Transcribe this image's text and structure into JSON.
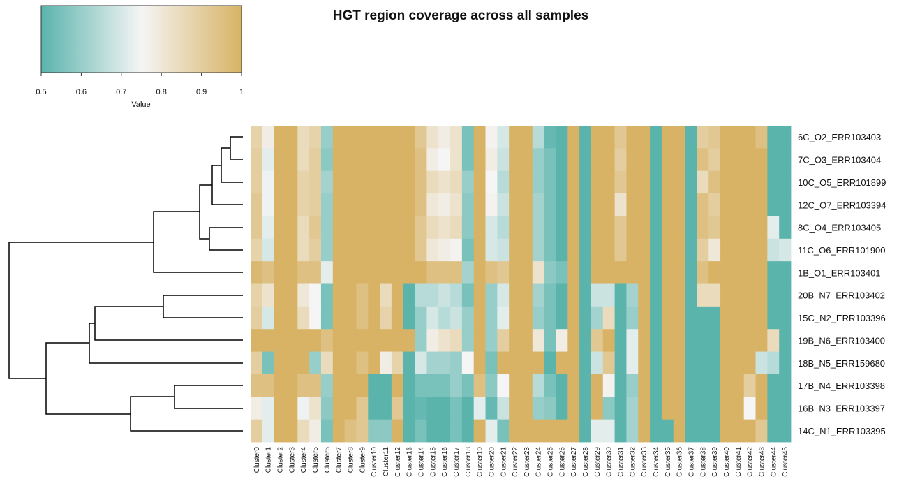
{
  "chart_data": {
    "type": "heatmap",
    "title": "HGT region coverage across all samples",
    "rows": [
      "6C_O2_ERR103403",
      "7C_O3_ERR103404",
      "10C_O5_ERR101899",
      "12C_O7_ERR103394",
      "8C_O4_ERR103405",
      "11C_O6_ERR101900",
      "1B_O1_ERR103401",
      "20B_N7_ERR103402",
      "15C_N2_ERR103396",
      "19B_N6_ERR103400",
      "18B_N5_ERR159680",
      "17B_N4_ERR103398",
      "16B_N3_ERR103397",
      "14C_N1_ERR103395"
    ],
    "columns": [
      "Cluster0",
      "Cluster1",
      "Cluster2",
      "Cluster3",
      "Cluster4",
      "Cluster5",
      "Cluster6",
      "Cluster7",
      "Cluster8",
      "Cluster9",
      "Cluster10",
      "Cluster11",
      "Cluster12",
      "Cluster13",
      "Cluster14",
      "Cluster15",
      "Cluster16",
      "Cluster17",
      "Cluster18",
      "Cluster19",
      "Cluster20",
      "Cluster21",
      "Cluster22",
      "Cluster23",
      "Cluster24",
      "Cluster25",
      "Cluster26",
      "Cluster27",
      "Cluster28",
      "Cluster29",
      "Cluster30",
      "Cluster31",
      "Cluster32",
      "Cluster33",
      "Cluster34",
      "Cluster35",
      "Cluster36",
      "Cluster37",
      "Cluster38",
      "Cluster39",
      "Cluster40",
      "Cluster41",
      "Cluster42",
      "Cluster43",
      "Cluster44",
      "Cluster45"
    ],
    "values": [
      [
        0.88,
        0.78,
        1,
        1,
        0.85,
        0.88,
        0.6,
        1,
        1,
        1,
        1,
        1,
        1,
        1,
        0.92,
        0.82,
        0.78,
        0.82,
        0.55,
        1,
        0.76,
        0.7,
        1,
        1,
        0.65,
        0.52,
        0.5,
        1,
        0.5,
        1,
        1,
        0.92,
        1,
        1,
        0.5,
        1,
        1,
        0.5,
        0.9,
        0.92,
        1,
        1,
        1,
        0.95,
        0.5,
        0.5
      ],
      [
        0.9,
        0.72,
        1,
        1,
        0.85,
        0.9,
        0.58,
        1,
        1,
        1,
        1,
        1,
        1,
        1,
        0.95,
        0.78,
        0.75,
        0.82,
        0.55,
        1,
        0.78,
        0.68,
        1,
        1,
        0.6,
        0.55,
        0.5,
        1,
        0.5,
        1,
        1,
        0.9,
        1,
        1,
        0.5,
        1,
        1,
        0.5,
        0.95,
        0.9,
        1,
        1,
        1,
        1,
        0.5,
        0.5
      ],
      [
        0.9,
        0.74,
        1,
        1,
        0.88,
        0.9,
        0.62,
        1,
        1,
        1,
        1,
        1,
        1,
        1,
        0.95,
        0.85,
        0.82,
        0.85,
        0.6,
        1,
        0.75,
        0.65,
        1,
        1,
        0.6,
        0.55,
        0.5,
        1,
        0.5,
        1,
        1,
        0.92,
        1,
        1,
        0.5,
        1,
        1,
        0.5,
        0.85,
        0.95,
        1,
        1,
        1,
        1,
        0.5,
        0.5
      ],
      [
        0.92,
        0.74,
        1,
        1,
        0.88,
        0.9,
        0.6,
        1,
        1,
        1,
        1,
        1,
        1,
        1,
        0.95,
        0.8,
        0.78,
        0.82,
        0.58,
        1,
        0.76,
        0.68,
        1,
        1,
        0.62,
        0.55,
        0.5,
        1,
        0.5,
        1,
        1,
        0.82,
        1,
        1,
        0.5,
        1,
        1,
        0.5,
        0.95,
        0.9,
        1,
        1,
        1,
        1,
        0.5,
        0.5
      ],
      [
        0.92,
        0.72,
        1,
        1,
        0.85,
        0.92,
        0.6,
        1,
        1,
        1,
        1,
        1,
        1,
        1,
        0.92,
        0.85,
        0.82,
        0.85,
        0.58,
        1,
        0.7,
        0.65,
        1,
        1,
        0.62,
        0.55,
        0.5,
        1,
        0.5,
        1,
        1,
        0.92,
        1,
        1,
        0.5,
        1,
        1,
        0.5,
        0.95,
        0.92,
        1,
        1,
        1,
        1,
        0.72,
        0.5
      ],
      [
        0.88,
        0.7,
        1,
        1,
        0.85,
        0.9,
        0.6,
        1,
        1,
        1,
        1,
        1,
        1,
        1,
        0.92,
        0.8,
        0.78,
        0.76,
        0.55,
        1,
        0.7,
        0.68,
        1,
        1,
        0.62,
        0.55,
        0.5,
        1,
        0.5,
        1,
        1,
        0.92,
        1,
        1,
        0.5,
        1,
        1,
        0.5,
        0.9,
        0.8,
        1,
        1,
        1,
        1,
        0.68,
        0.7
      ],
      [
        0.98,
        0.95,
        1,
        1,
        0.95,
        0.95,
        0.72,
        1,
        1,
        1,
        1,
        1,
        1,
        1,
        1,
        0.95,
        0.95,
        0.95,
        0.62,
        1,
        0.95,
        0.92,
        1,
        1,
        0.82,
        0.58,
        0.55,
        1,
        0.5,
        1,
        1,
        1,
        1,
        1,
        0.5,
        1,
        1,
        0.5,
        0.95,
        1,
        1,
        1,
        1,
        1,
        0.5,
        0.5
      ],
      [
        0.88,
        0.82,
        1,
        1,
        0.8,
        0.75,
        0.55,
        1,
        1,
        0.95,
        1,
        0.85,
        1,
        0.5,
        0.65,
        0.65,
        0.68,
        0.65,
        0.55,
        1,
        0.6,
        0.7,
        1,
        1,
        0.62,
        0.55,
        0.5,
        1,
        0.5,
        0.68,
        0.68,
        0.5,
        0.62,
        1,
        0.5,
        1,
        1,
        0.5,
        0.85,
        0.85,
        1,
        1,
        1,
        1,
        0.5,
        0.5
      ],
      [
        0.9,
        0.7,
        1,
        1,
        0.85,
        0.75,
        0.55,
        1,
        1,
        0.95,
        1,
        0.88,
        1,
        0.5,
        0.6,
        0.7,
        0.65,
        0.68,
        0.6,
        1,
        0.6,
        0.72,
        1,
        1,
        0.6,
        0.55,
        0.5,
        1,
        0.5,
        0.62,
        0.85,
        0.5,
        0.6,
        1,
        0.5,
        1,
        1,
        0.5,
        0.5,
        0.5,
        1,
        1,
        1,
        1,
        0.5,
        0.5
      ],
      [
        1,
        1,
        1,
        1,
        1,
        1,
        0.95,
        1,
        1,
        1,
        1,
        1,
        1,
        1,
        0.6,
        0.78,
        0.82,
        0.85,
        0.6,
        1,
        0.6,
        0.9,
        1,
        1,
        0.8,
        0.55,
        0.78,
        1,
        0.5,
        0.92,
        1,
        0.5,
        0.72,
        1,
        0.5,
        1,
        1,
        0.5,
        0.5,
        0.5,
        1,
        1,
        1,
        1,
        0.85,
        0.5
      ],
      [
        0.9,
        0.55,
        1,
        1,
        1,
        0.6,
        0.85,
        1,
        1,
        0.95,
        1,
        0.78,
        0.88,
        0.5,
        0.7,
        0.62,
        0.62,
        0.6,
        0.75,
        1,
        0.55,
        1,
        1,
        1,
        1,
        0.5,
        1,
        1,
        0.5,
        0.68,
        0.92,
        0.5,
        0.72,
        1,
        0.5,
        1,
        1,
        0.5,
        0.5,
        0.5,
        1,
        1,
        1,
        0.68,
        0.65,
        0.5
      ],
      [
        0.95,
        0.95,
        1,
        1,
        0.95,
        0.95,
        0.6,
        1,
        1,
        1,
        0.5,
        0.5,
        1,
        0.5,
        0.55,
        0.55,
        0.55,
        0.6,
        0.55,
        0.95,
        0.58,
        0.75,
        1,
        1,
        0.65,
        0.55,
        0.5,
        1,
        0.5,
        1,
        0.76,
        0.5,
        0.6,
        1,
        0.5,
        1,
        1,
        0.5,
        0.5,
        0.5,
        1,
        1,
        0.9,
        1,
        0.5,
        0.5
      ],
      [
        0.78,
        0.72,
        1,
        1,
        0.74,
        0.82,
        0.58,
        1,
        1,
        0.92,
        0.5,
        0.5,
        0.92,
        0.5,
        0.52,
        0.5,
        0.5,
        0.55,
        0.5,
        0.72,
        0.52,
        0.68,
        1,
        1,
        0.6,
        0.58,
        0.5,
        1,
        0.5,
        1,
        0.58,
        0.5,
        0.62,
        1,
        0.5,
        1,
        1,
        0.5,
        0.5,
        0.5,
        1,
        1,
        0.75,
        1,
        0.5,
        0.5
      ],
      [
        0.9,
        0.72,
        1,
        1,
        0.85,
        0.78,
        0.55,
        1,
        0.95,
        0.92,
        0.58,
        0.58,
        1,
        0.5,
        0.55,
        0.5,
        0.5,
        0.55,
        0.5,
        1,
        0.72,
        0.55,
        1,
        1,
        1,
        1,
        1,
        1,
        0.5,
        0.72,
        0.72,
        0.5,
        0.62,
        1,
        0.5,
        0.5,
        1,
        0.5,
        0.5,
        0.5,
        1,
        1,
        1,
        0.92,
        0.5,
        0.5
      ]
    ],
    "colorbar": {
      "label": "Value",
      "lim": [
        0.5,
        1
      ],
      "ticks": [
        0.5,
        0.6,
        0.7,
        0.8,
        0.9,
        1
      ],
      "colors": [
        "#5ab4ac",
        "#f5f5f5",
        "#d8b365"
      ]
    }
  }
}
